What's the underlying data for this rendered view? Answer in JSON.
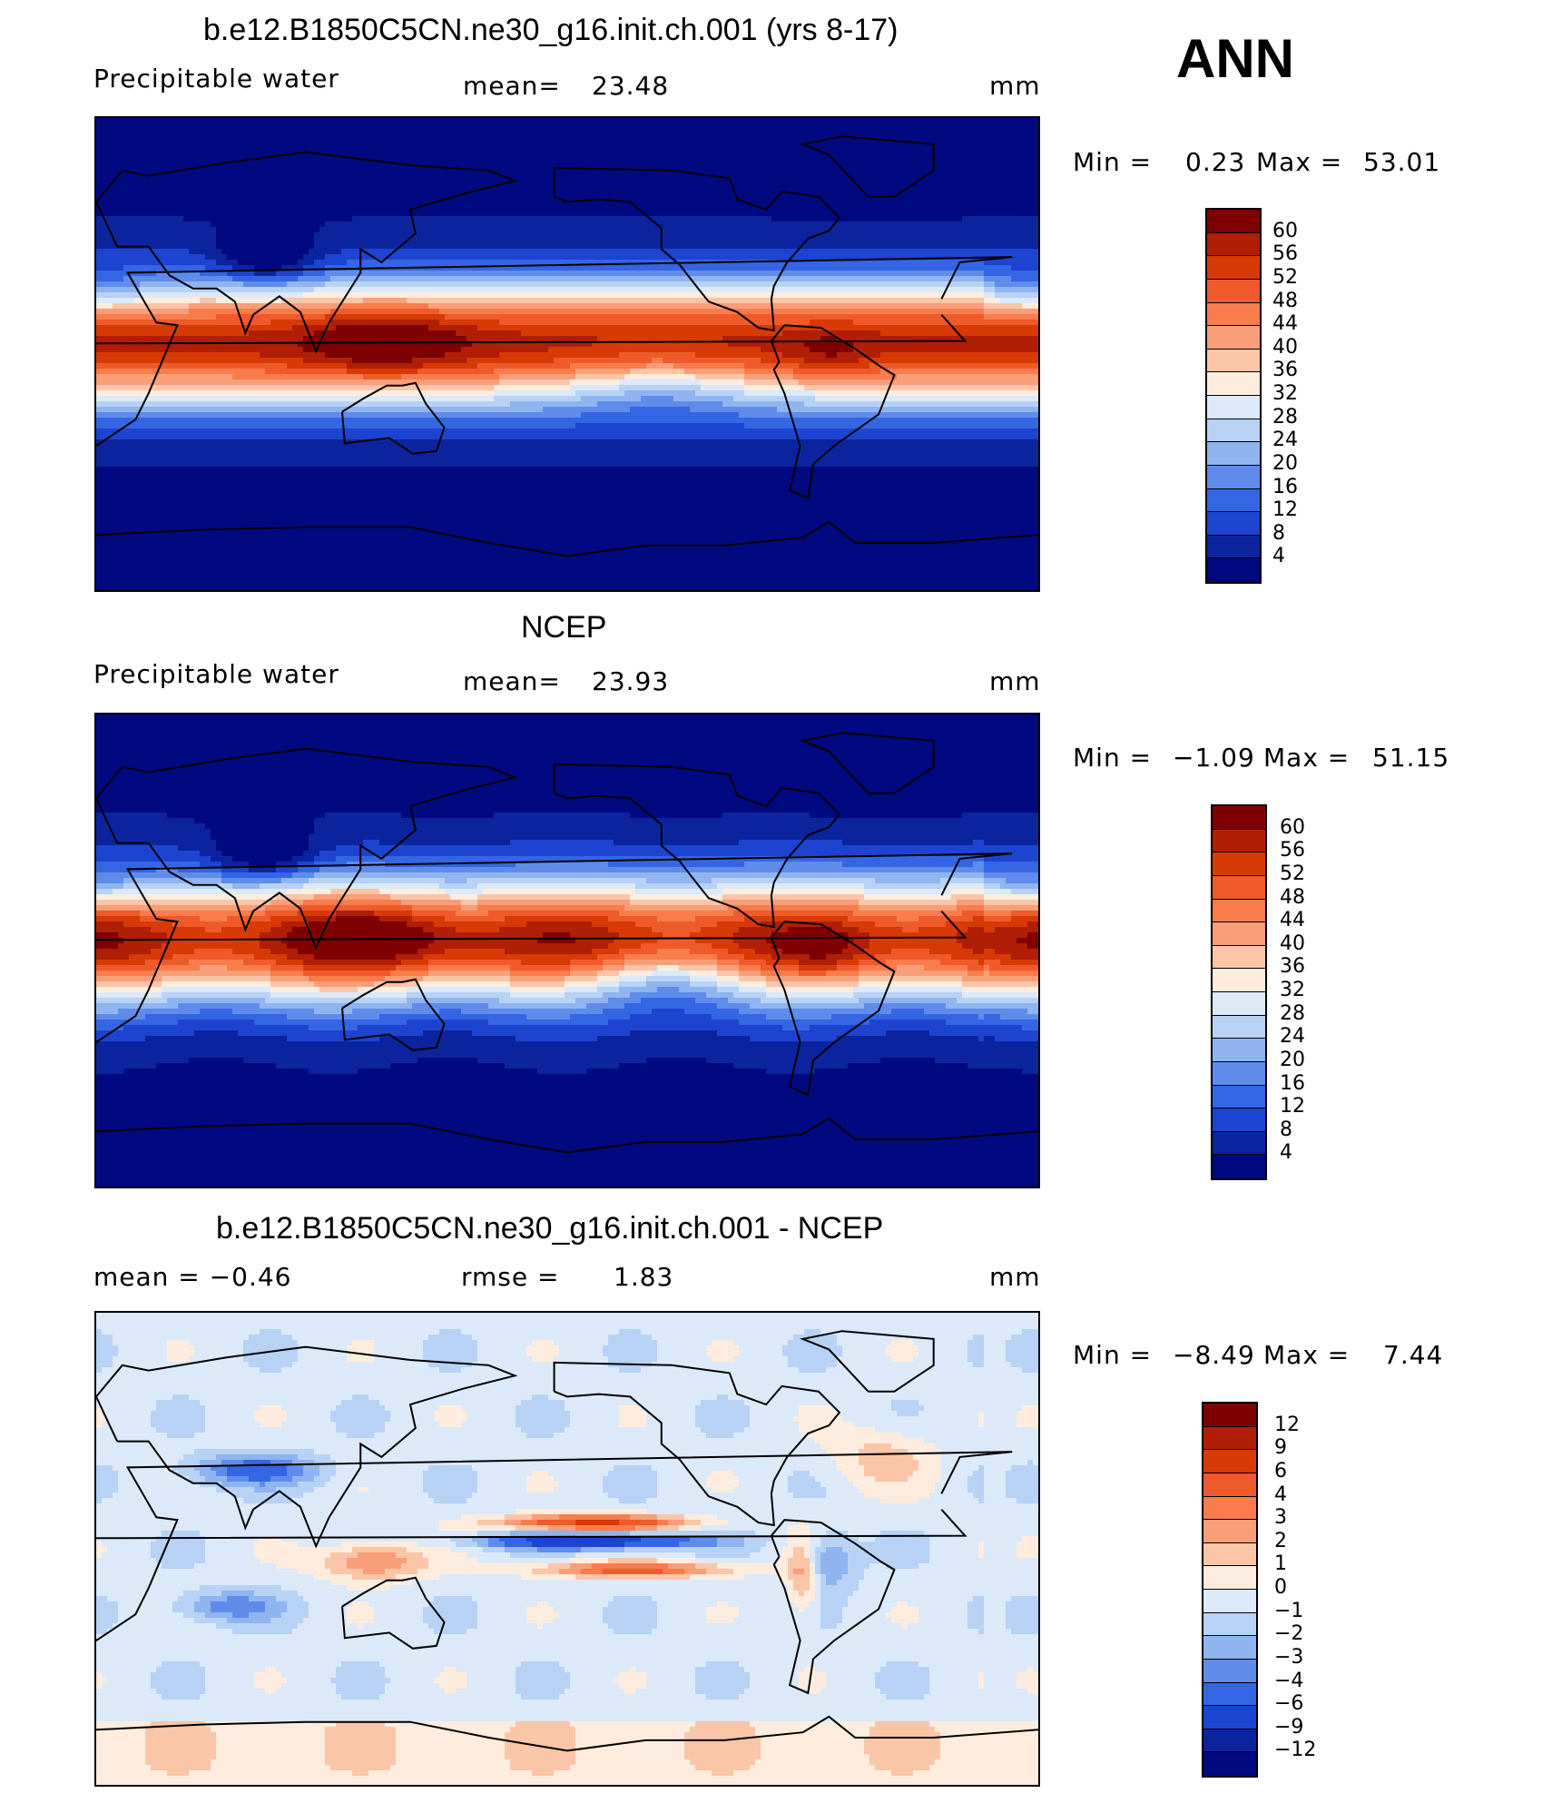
{
  "season": "ANN",
  "panels": [
    {
      "title": "b.e12.B1850C5CN.ne30_g16.init.ch.001 (yrs 8-17)",
      "left_label": "Precipitable  water",
      "stat_label": "mean=",
      "stat_value": "23.48",
      "units": "mm",
      "minmax": {
        "min_label": "Min  =",
        "min_value": "0.23",
        "max_label": "Max  =",
        "max_value": "53.01"
      },
      "colorbar": {
        "levels": [
          "60",
          "56",
          "52",
          "48",
          "44",
          "40",
          "36",
          "32",
          "28",
          "24",
          "20",
          "16",
          "12",
          "8",
          "4"
        ],
        "colors": [
          "#7f0000",
          "#b01e06",
          "#d73a05",
          "#ef5a2b",
          "#f87c4c",
          "#f89e78",
          "#fbc5a8",
          "#feedde",
          "#dce9f8",
          "#b7d2f5",
          "#8fb4f0",
          "#5f8ceb",
          "#3466e3",
          "#1c44d0",
          "#0b249e",
          "#000880"
        ]
      },
      "map_style": "model"
    },
    {
      "title": "NCEP",
      "left_label": "Precipitable  water",
      "stat_label": "mean=",
      "stat_value": "23.93",
      "units": "mm",
      "minmax": {
        "min_label": "Min  =",
        "min_value": "−1.09",
        "max_label": "Max  =",
        "max_value": "51.15"
      },
      "colorbar": {
        "levels": [
          "60",
          "56",
          "52",
          "48",
          "44",
          "40",
          "36",
          "32",
          "28",
          "24",
          "20",
          "16",
          "12",
          "8",
          "4"
        ],
        "colors": [
          "#7f0000",
          "#b01e06",
          "#d73a05",
          "#ef5a2b",
          "#f87c4c",
          "#f89e78",
          "#fbc5a8",
          "#feedde",
          "#dce9f8",
          "#b7d2f5",
          "#8fb4f0",
          "#5f8ceb",
          "#3466e3",
          "#1c44d0",
          "#0b249e",
          "#000880"
        ]
      },
      "map_style": "obs"
    },
    {
      "title": "b.e12.B1850C5CN.ne30_g16.init.ch.001 - NCEP",
      "left_label": "mean  =    −0.46",
      "stat_label": "rmse  =",
      "stat_value": "1.83",
      "units": "mm",
      "minmax": {
        "min_label": "Min  =",
        "min_value": "−8.49",
        "max_label": "Max  =",
        "max_value": "7.44"
      },
      "colorbar": {
        "levels": [
          "12",
          "9",
          "6",
          "4",
          "3",
          "2",
          "1",
          "0",
          "−1",
          "−2",
          "−3",
          "−4",
          "−6",
          "−9",
          "−12"
        ],
        "colors": [
          "#7f0000",
          "#b01e06",
          "#d73a05",
          "#ef5a2b",
          "#f87c4c",
          "#f89e78",
          "#fbc5a8",
          "#feedde",
          "#dce9f8",
          "#b7d2f5",
          "#8fb4f0",
          "#5f8ceb",
          "#3466e3",
          "#1c44d0",
          "#0b249e",
          "#000880"
        ]
      },
      "map_style": "diff"
    }
  ]
}
